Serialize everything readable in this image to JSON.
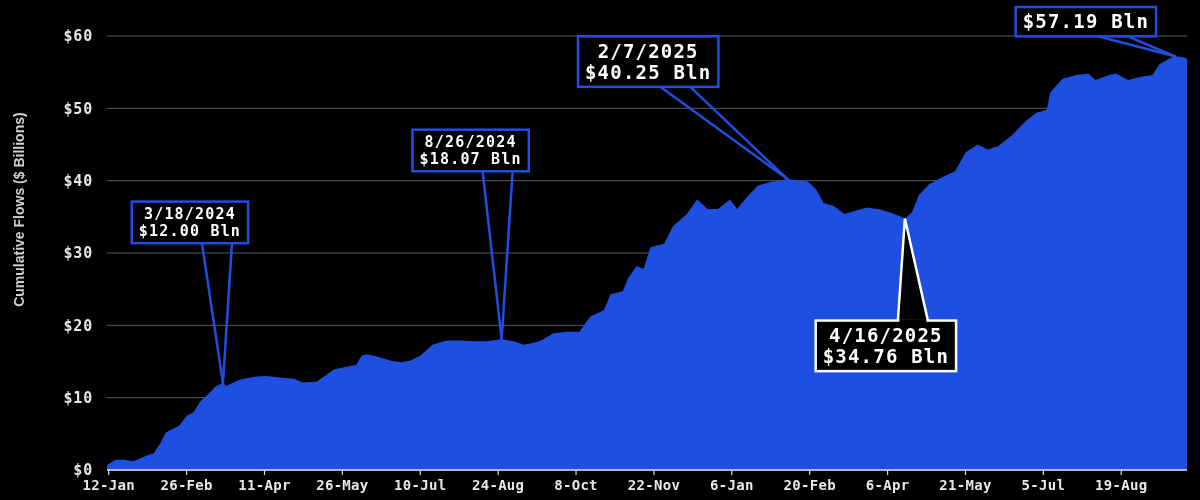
{
  "chart_data": {
    "type": "area",
    "ylabel": "Cumulative Flows ($ Billions)",
    "x": [
      "2024-01-11",
      "2024-01-16",
      "2024-01-21",
      "2024-01-26",
      "2024-01-30",
      "2024-02-03",
      "2024-02-07",
      "2024-02-11",
      "2024-02-14",
      "2024-02-22",
      "2024-02-26",
      "2024-03-01",
      "2024-03-05",
      "2024-03-10",
      "2024-03-13",
      "2024-03-15",
      "2024-03-18",
      "2024-03-20",
      "2024-03-24",
      "2024-03-28",
      "2024-04-05",
      "2024-04-12",
      "2024-04-20",
      "2024-04-28",
      "2024-05-03",
      "2024-05-11",
      "2024-05-17",
      "2024-05-21",
      "2024-05-31",
      "2024-06-03",
      "2024-06-06",
      "2024-06-09",
      "2024-06-15",
      "2024-06-23",
      "2024-06-29",
      "2024-07-04",
      "2024-07-10",
      "2024-07-17",
      "2024-07-25",
      "2024-08-02",
      "2024-08-10",
      "2024-08-17",
      "2024-08-26",
      "2024-09-02",
      "2024-09-08",
      "2024-09-17",
      "2024-09-25",
      "2024-10-03",
      "2024-10-10",
      "2024-10-16",
      "2024-10-24",
      "2024-10-28",
      "2024-11-04",
      "2024-11-07",
      "2024-11-12",
      "2024-11-16",
      "2024-11-20",
      "2024-11-28",
      "2024-12-03",
      "2024-12-11",
      "2024-12-17",
      "2024-12-23",
      "2024-12-29",
      "2025-01-05",
      "2025-01-09",
      "2025-01-15",
      "2025-01-21",
      "2025-01-29",
      "2025-02-03",
      "2025-02-07",
      "2025-02-11",
      "2025-02-15",
      "2025-02-19",
      "2025-02-24",
      "2025-02-28",
      "2025-03-06",
      "2025-03-12",
      "2025-03-18",
      "2025-03-25",
      "2025-04-02",
      "2025-04-10",
      "2025-04-16",
      "2025-04-20",
      "2025-04-24",
      "2025-04-30",
      "2025-05-07",
      "2025-05-15",
      "2025-05-21",
      "2025-05-28",
      "2025-06-03",
      "2025-06-09",
      "2025-06-17",
      "2025-06-25",
      "2025-07-01",
      "2025-07-07",
      "2025-07-09",
      "2025-07-16",
      "2025-07-24",
      "2025-07-31",
      "2025-08-04",
      "2025-08-12",
      "2025-08-16",
      "2025-08-23",
      "2025-08-31",
      "2025-09-06",
      "2025-09-10",
      "2025-09-16",
      "2025-09-19",
      "2025-09-23",
      "2025-09-26"
    ],
    "series": [
      {
        "color": "#1e4fe0",
        "values": [
          0.7,
          1.4,
          1.4,
          1.2,
          1.6,
          2.0,
          2.3,
          3.8,
          5.2,
          6.2,
          7.5,
          8.0,
          9.5,
          10.6,
          11.4,
          11.7,
          12.0,
          11.6,
          12.1,
          12.5,
          12.9,
          13.0,
          12.8,
          12.6,
          12.1,
          12.2,
          13.2,
          13.9,
          14.4,
          14.5,
          15.8,
          16.0,
          15.7,
          15.1,
          14.9,
          15.1,
          15.8,
          17.3,
          17.9,
          17.9,
          17.8,
          17.8,
          18.07,
          17.8,
          17.3,
          17.8,
          18.9,
          19.1,
          19.1,
          21.2,
          22.1,
          24.3,
          24.7,
          26.5,
          28.2,
          27.8,
          30.8,
          31.3,
          33.7,
          35.4,
          37.4,
          36.1,
          36.1,
          37.4,
          36.1,
          37.8,
          39.3,
          39.9,
          40.0,
          40.25,
          40.1,
          40.0,
          39.9,
          38.7,
          36.9,
          36.5,
          35.4,
          35.8,
          36.3,
          36.0,
          35.4,
          34.76,
          35.6,
          38.0,
          39.5,
          40.4,
          41.3,
          43.9,
          45.0,
          44.3,
          44.8,
          46.3,
          48.3,
          49.4,
          49.8,
          52.2,
          54.1,
          54.6,
          54.8,
          53.9,
          54.6,
          54.8,
          53.9,
          54.4,
          54.6,
          56.1,
          56.9,
          57.19,
          57.1,
          56.9
        ]
      }
    ],
    "xlim": [
      "2024-01-11",
      "2025-09-26"
    ],
    "ylim": [
      0,
      60
    ],
    "xticks": [
      {
        "value": "2024-01-12",
        "label": "12-Jan"
      },
      {
        "value": "2024-02-26",
        "label": "26-Feb"
      },
      {
        "value": "2024-04-11",
        "label": "11-Apr"
      },
      {
        "value": "2024-05-26",
        "label": "26-May"
      },
      {
        "value": "2024-07-10",
        "label": "10-Jul"
      },
      {
        "value": "2024-08-24",
        "label": "24-Aug"
      },
      {
        "value": "2024-10-08",
        "label": "8-Oct"
      },
      {
        "value": "2024-11-22",
        "label": "22-Nov"
      },
      {
        "value": "2025-01-06",
        "label": "6-Jan"
      },
      {
        "value": "2025-02-20",
        "label": "20-Feb"
      },
      {
        "value": "2025-04-06",
        "label": "6-Apr"
      },
      {
        "value": "2025-05-21",
        "label": "21-May"
      },
      {
        "value": "2025-07-05",
        "label": "5-Jul"
      },
      {
        "value": "2025-08-19",
        "label": "19-Aug"
      }
    ],
    "yticks": [
      {
        "value": 0,
        "label": "$0"
      },
      {
        "value": 10,
        "label": "$10"
      },
      {
        "value": 20,
        "label": "$20"
      },
      {
        "value": 30,
        "label": "$30"
      },
      {
        "value": 40,
        "label": "$40"
      },
      {
        "value": 50,
        "label": "$50"
      },
      {
        "value": 60,
        "label": "$60"
      }
    ],
    "grid": "y",
    "annotations": [
      {
        "text": "3/18/2024\n$12.00 Bln",
        "x": "2024-03-18",
        "y": 12.0
      },
      {
        "text": "8/26/2024\n$18.07 Bln",
        "x": "2024-08-26",
        "y": 18.07
      },
      {
        "text": "2/7/2025\n$40.25 Bln",
        "x": "2025-02-07",
        "y": 40.25
      },
      {
        "text": "4/16/2025\n$34.76 Bln",
        "x": "2025-04-16",
        "y": 34.76
      },
      {
        "text": "$57.19 Bln",
        "x": "2025-09-19",
        "y": 57.19
      }
    ]
  }
}
